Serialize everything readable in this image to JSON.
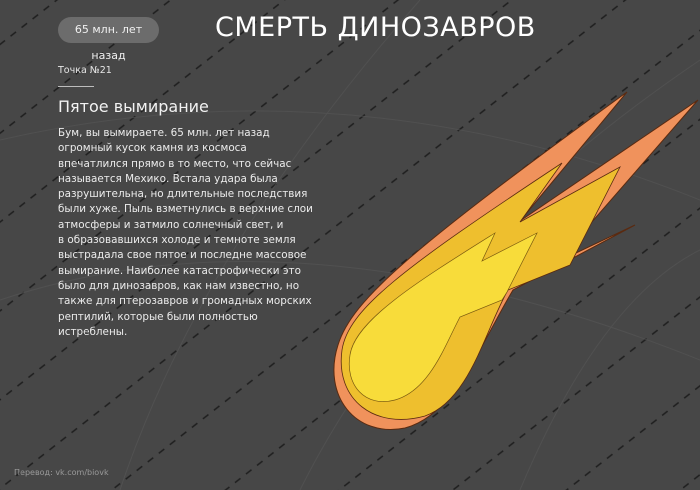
{
  "header": {
    "era_badge": "65 млн. лет назад",
    "title": "СМЕРТЬ ДИНОЗАВРОВ"
  },
  "content": {
    "point_label": "Точка №21",
    "heading": "Пятое вымирание",
    "body_lines": [
      "Бум, вы вымираете. 65 млн. лет назад",
      "огромный кусок камня из космоса",
      "впечатлился прямо в то место, что сейчас",
      "называется Мехико. Встала удара была",
      "разрушительна, но длительные последствия",
      "были хуже. Пыль взметнулись в верхние слои",
      "атмосферы и затмило солнечный свет, и",
      "в образовавшихся холоде и темноте земля",
      "выстрадала свое пятое и последне массовое",
      "вымирание. Наиболее катастрофически это",
      "было для динозавров, как нам известно, но",
      "также для птерозавров и громадных морских",
      "рептилий, которые были полностью",
      "истреблены."
    ]
  },
  "footer": {
    "credit": "Перевод: vk.com/biovk"
  },
  "illustration": {
    "name": "comet-icon",
    "colors": {
      "outer": "#f0925c",
      "middle": "#eebf2e",
      "inner": "#f8dc3a",
      "outline": "#5a2a10",
      "background": "#474747"
    }
  }
}
